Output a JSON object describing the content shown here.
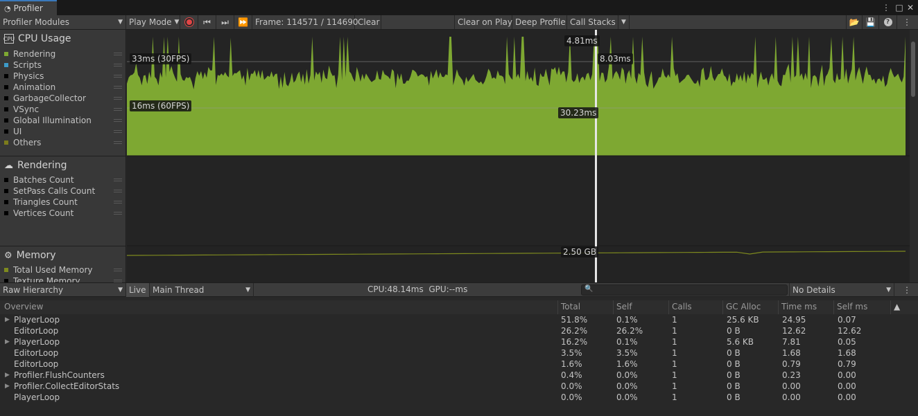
{
  "window": {
    "tab_label": "Profiler"
  },
  "toolbar": {
    "modules_dropdown": "Profiler Modules",
    "play_mode": "Play Mode",
    "frame_label": "Frame: 114571 / 114690",
    "clear": "Clear",
    "clear_on_play": "Clear on Play",
    "deep_profile": "Deep Profile",
    "call_stacks": "Call Stacks"
  },
  "modules": {
    "cpu": {
      "title": "CPU Usage",
      "legend": [
        {
          "label": "Rendering",
          "color": "#7ea832"
        },
        {
          "label": "Scripts",
          "color": "#3d9ac8"
        },
        {
          "label": "Physics",
          "color": "#000000"
        },
        {
          "label": "Animation",
          "color": "#000000"
        },
        {
          "label": "GarbageCollector",
          "color": "#000000"
        },
        {
          "label": "VSync",
          "color": "#000000"
        },
        {
          "label": "Global Illumination",
          "color": "#000000"
        },
        {
          "label": "UI",
          "color": "#000000"
        },
        {
          "label": "Others",
          "color": "#7c7c1c"
        }
      ],
      "line_30fps": "33ms (30FPS)",
      "line_60fps": "16ms (60FPS)",
      "selected_top": "4.81ms",
      "selected_mid": "8.03ms",
      "selected_low": "30.23ms"
    },
    "rendering": {
      "title": "Rendering",
      "legend": [
        {
          "label": "Batches Count"
        },
        {
          "label": "SetPass Calls Count"
        },
        {
          "label": "Triangles Count"
        },
        {
          "label": "Vertices Count"
        }
      ]
    },
    "memory": {
      "title": "Memory",
      "legend": [
        {
          "label": "Total Used Memory",
          "color": "#7e8a1e"
        },
        {
          "label": "Texture Memory",
          "color": "#000000"
        }
      ],
      "value": "2.50 GB"
    }
  },
  "details_bar": {
    "view_dropdown": "Raw Hierarchy",
    "live": "Live",
    "thread_dropdown": "Main Thread",
    "cpu_gpu": "CPU:48.14ms  GPU:--ms",
    "details_dropdown": "No Details"
  },
  "table": {
    "columns": [
      "Overview",
      "Total",
      "Self",
      "Calls",
      "GC Alloc",
      "Time ms",
      "Self ms"
    ],
    "rows": [
      {
        "name": "PlayerLoop",
        "expandable": true,
        "total": "51.8%",
        "self": "0.1%",
        "calls": "1",
        "gc": "25.6 KB",
        "time": "24.95",
        "selfms": "0.07"
      },
      {
        "name": "EditorLoop",
        "expandable": false,
        "total": "26.2%",
        "self": "26.2%",
        "calls": "1",
        "gc": "0 B",
        "time": "12.62",
        "selfms": "12.62"
      },
      {
        "name": "PlayerLoop",
        "expandable": true,
        "total": "16.2%",
        "self": "0.1%",
        "calls": "1",
        "gc": "5.6 KB",
        "time": "7.81",
        "selfms": "0.05"
      },
      {
        "name": "EditorLoop",
        "expandable": false,
        "total": "3.5%",
        "self": "3.5%",
        "calls": "1",
        "gc": "0 B",
        "time": "1.68",
        "selfms": "1.68"
      },
      {
        "name": "EditorLoop",
        "expandable": false,
        "total": "1.6%",
        "self": "1.6%",
        "calls": "1",
        "gc": "0 B",
        "time": "0.79",
        "selfms": "0.79"
      },
      {
        "name": "Profiler.FlushCounters",
        "expandable": true,
        "total": "0.4%",
        "self": "0.0%",
        "calls": "1",
        "gc": "0 B",
        "time": "0.23",
        "selfms": "0.00"
      },
      {
        "name": "Profiler.CollectEditorStats",
        "expandable": true,
        "total": "0.0%",
        "self": "0.0%",
        "calls": "1",
        "gc": "0 B",
        "time": "0.00",
        "selfms": "0.00"
      },
      {
        "name": "PlayerLoop",
        "expandable": false,
        "total": "0.0%",
        "self": "0.0%",
        "calls": "1",
        "gc": "0 B",
        "time": "0.00",
        "selfms": "0.00"
      }
    ]
  }
}
